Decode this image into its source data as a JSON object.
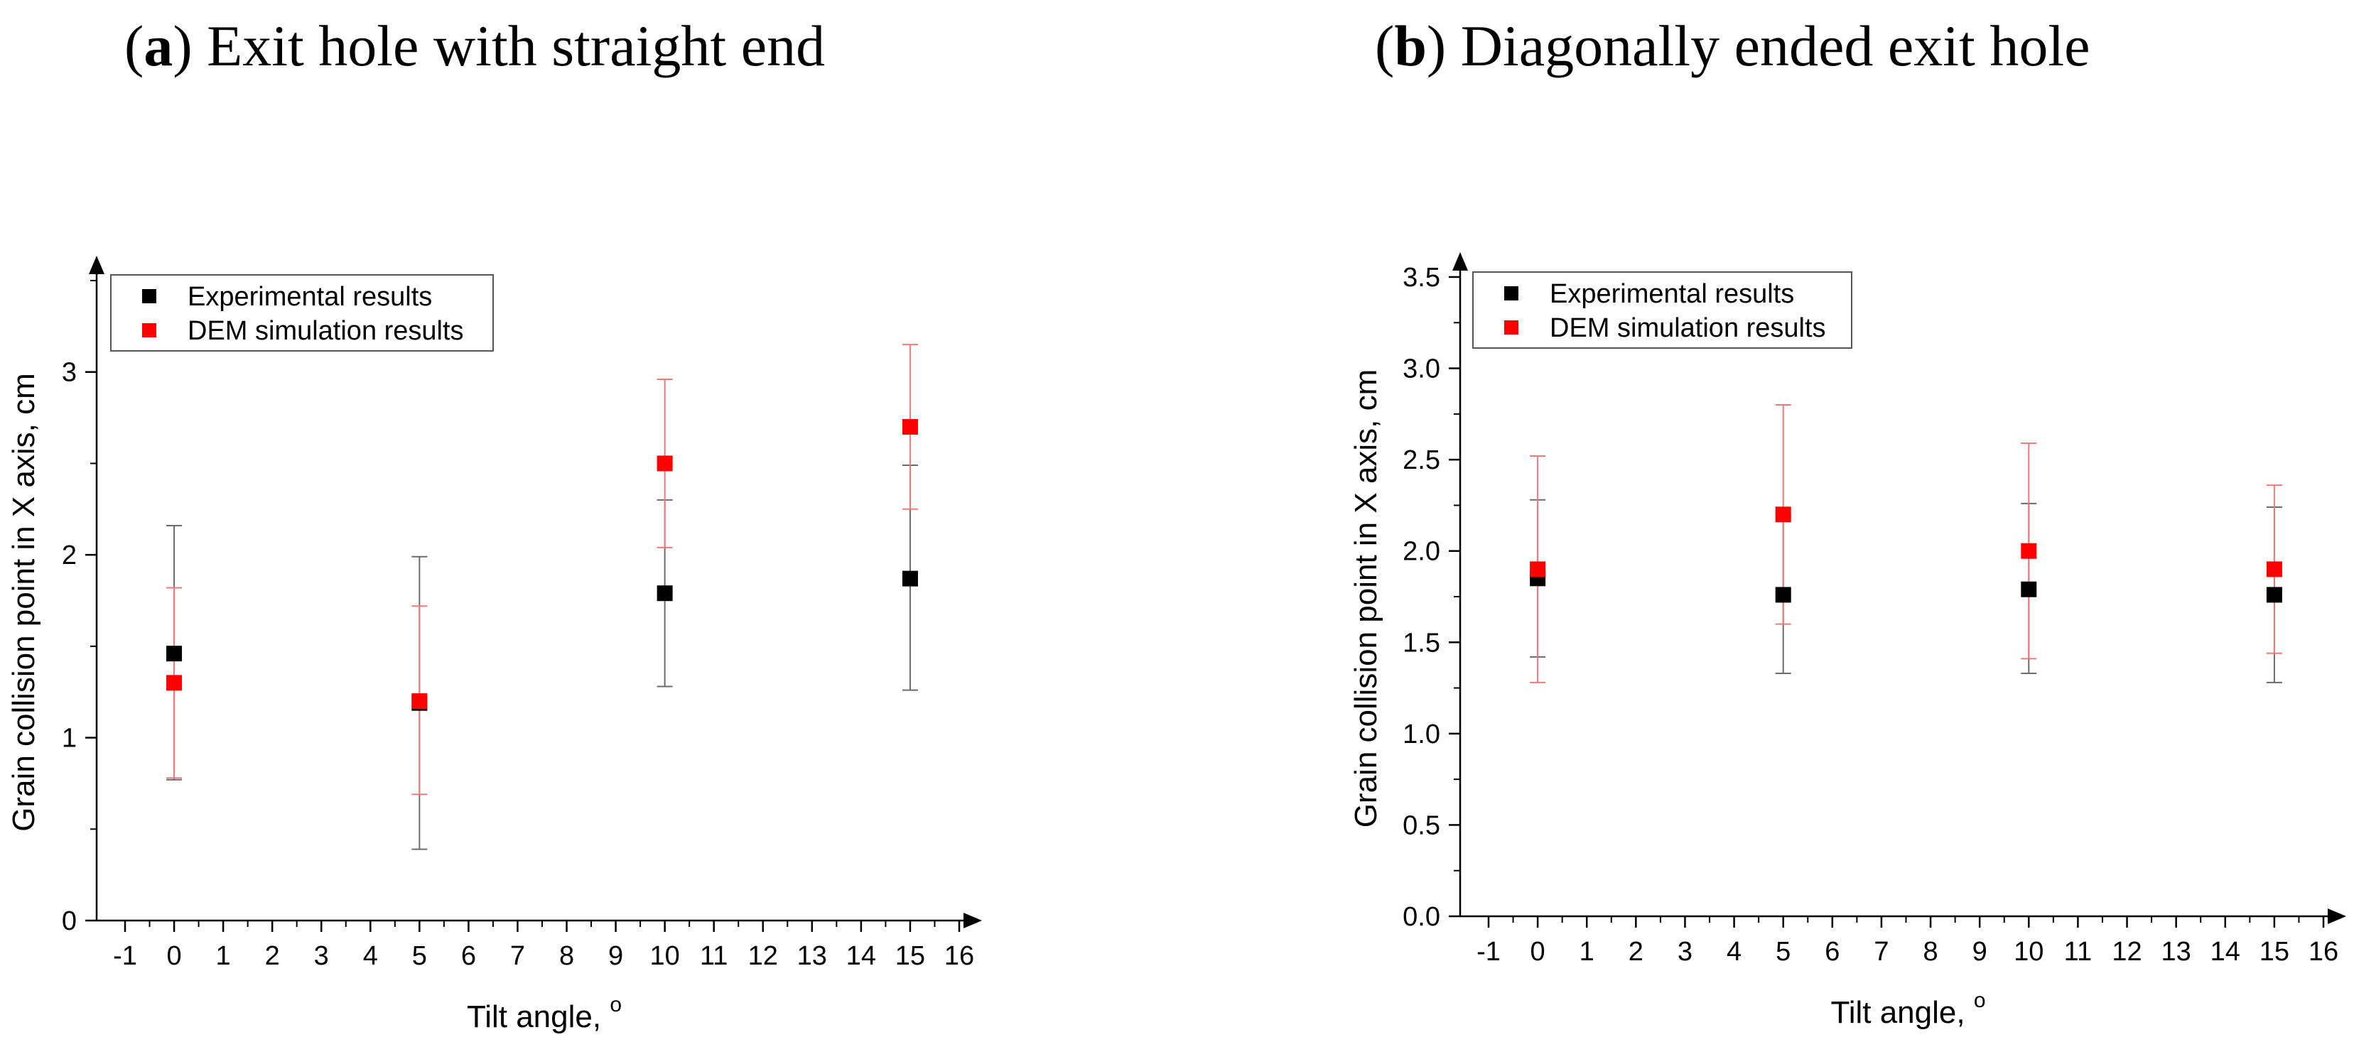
{
  "chart_data": [
    {
      "type": "scatter",
      "panel_label": "a",
      "title": "Exit hole with straight end",
      "xlabel": "Tilt angle, ",
      "xlabel_sup": "o",
      "ylabel": "Grain collision point in X axis, cm",
      "xlim": [
        -1,
        16
      ],
      "ylim": [
        0,
        3.5
      ],
      "xticks": [
        "-1",
        "0",
        "1",
        "2",
        "3",
        "4",
        "5",
        "6",
        "7",
        "8",
        "9",
        "10",
        "11",
        "12",
        "13",
        "14",
        "15",
        "16"
      ],
      "yticks": [
        "0",
        "1",
        "2",
        "3"
      ],
      "ytick_values": [
        0,
        1,
        2,
        3
      ],
      "legend_position": "top-left",
      "series": [
        {
          "name": "Experimental results",
          "color": "#000000",
          "errcolor": "#6b6b6b",
          "x": [
            0,
            5,
            10,
            15
          ],
          "y": [
            1.46,
            1.19,
            1.79,
            1.87
          ],
          "err_low": [
            0.77,
            0.39,
            1.28,
            1.26
          ],
          "err_high": [
            2.16,
            1.99,
            2.3,
            2.49
          ]
        },
        {
          "name": "DEM simulation results",
          "color": "#ff0000",
          "errcolor": "#f07a7a",
          "x": [
            0,
            5,
            10,
            15
          ],
          "y": [
            1.3,
            1.2,
            2.5,
            2.7
          ],
          "err_low": [
            0.78,
            0.69,
            2.04,
            2.25
          ],
          "err_high": [
            1.82,
            1.72,
            2.96,
            3.15
          ]
        }
      ]
    },
    {
      "type": "scatter",
      "panel_label": "b",
      "title": "Diagonally ended exit hole",
      "xlabel": "Tilt angle, ",
      "xlabel_sup": "o",
      "ylabel": "Grain collision point in X axis, cm",
      "xlim": [
        -1,
        16
      ],
      "ylim": [
        0,
        3.5
      ],
      "xticks": [
        "-1",
        "0",
        "1",
        "2",
        "3",
        "4",
        "5",
        "6",
        "7",
        "8",
        "9",
        "10",
        "11",
        "12",
        "13",
        "14",
        "15",
        "16"
      ],
      "yticks": [
        "0.0",
        "0.5",
        "1.0",
        "1.5",
        "2.0",
        "2.5",
        "3.0",
        "3.5"
      ],
      "ytick_values": [
        0,
        0.5,
        1.0,
        1.5,
        2.0,
        2.5,
        3.0,
        3.5
      ],
      "legend_position": "top-left",
      "series": [
        {
          "name": "Experimental results",
          "color": "#000000",
          "errcolor": "#6b6b6b",
          "x": [
            0,
            5,
            10,
            15
          ],
          "y": [
            1.85,
            1.76,
            1.79,
            1.76
          ],
          "err_low": [
            1.42,
            1.33,
            1.33,
            1.28
          ],
          "err_high": [
            2.28,
            2.19,
            2.26,
            2.24
          ]
        },
        {
          "name": "DEM simulation results",
          "color": "#ff0000",
          "errcolor": "#f07a7a",
          "x": [
            0,
            5,
            10,
            15
          ],
          "y": [
            1.9,
            2.2,
            2.0,
            1.9
          ],
          "err_low": [
            1.28,
            1.6,
            1.41,
            1.44
          ],
          "err_high": [
            2.52,
            2.8,
            2.59,
            2.36
          ]
        }
      ]
    }
  ]
}
